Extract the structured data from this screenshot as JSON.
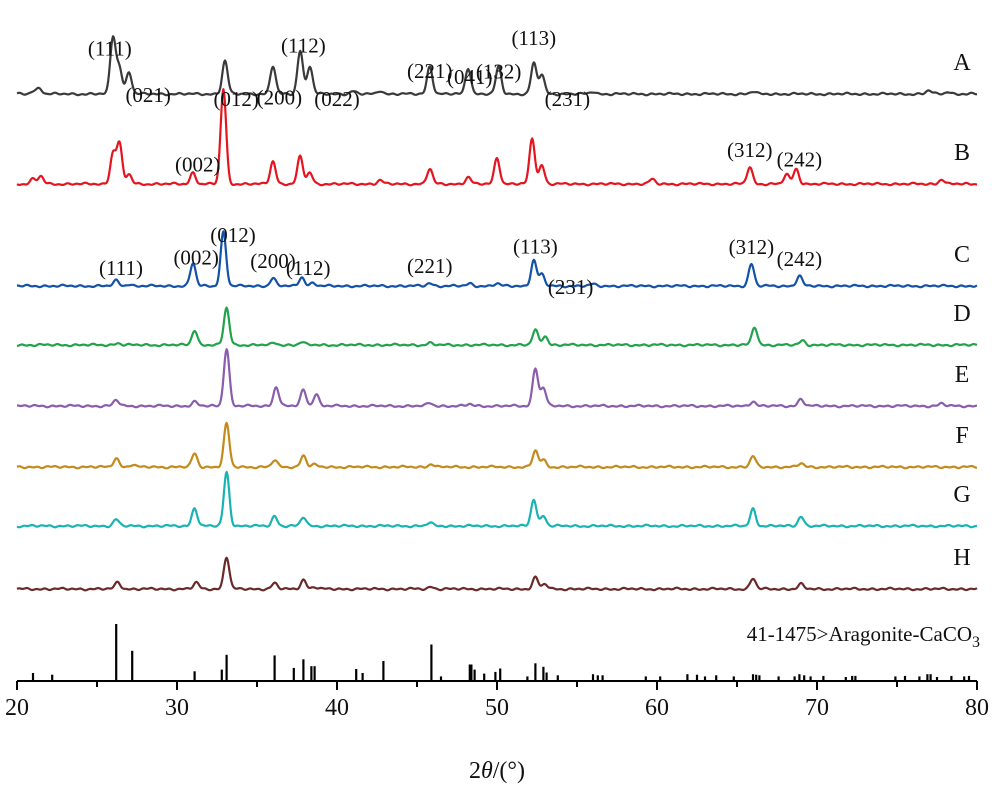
{
  "chart_data": {
    "type": "line",
    "x_range": [
      20,
      80
    ],
    "x_ticks": [
      "20",
      "30",
      "40",
      "50",
      "60",
      "70",
      "80"
    ],
    "xlabel": {
      "pre": "2",
      "theta": "θ",
      "post": "/(°)"
    },
    "grid": false,
    "series": [
      {
        "name": "A",
        "color": "#3a3a3a",
        "scale": 58,
        "peaks": [
          [
            21.0,
            0.05
          ],
          [
            21.4,
            0.1
          ],
          [
            26.0,
            0.98
          ],
          [
            26.4,
            0.45
          ],
          [
            27.0,
            0.38
          ],
          [
            33.0,
            0.57
          ],
          [
            36.0,
            0.48
          ],
          [
            37.7,
            0.75
          ],
          [
            38.3,
            0.48
          ],
          [
            41.0,
            0.05
          ],
          [
            42.7,
            0.06
          ],
          [
            45.8,
            0.48
          ],
          [
            48.2,
            0.45
          ],
          [
            50.1,
            0.47
          ],
          [
            52.3,
            0.53
          ],
          [
            52.8,
            0.33
          ],
          [
            56.0,
            0.04
          ],
          [
            66.0,
            0.04
          ],
          [
            77.0,
            0.06
          ],
          [
            78.2,
            0.04
          ]
        ]
      },
      {
        "name": "B",
        "color": "#e5141e",
        "scale": 95,
        "peaks": [
          [
            21.0,
            0.05
          ],
          [
            21.5,
            0.08
          ],
          [
            26.0,
            0.32
          ],
          [
            26.4,
            0.42
          ],
          [
            27.0,
            0.1
          ],
          [
            31.0,
            0.12
          ],
          [
            32.9,
            1.0
          ],
          [
            36.0,
            0.24
          ],
          [
            37.7,
            0.29
          ],
          [
            38.3,
            0.12
          ],
          [
            42.7,
            0.04
          ],
          [
            45.8,
            0.16
          ],
          [
            48.2,
            0.07
          ],
          [
            50.0,
            0.28
          ],
          [
            52.2,
            0.48
          ],
          [
            52.8,
            0.2
          ],
          [
            59.7,
            0.05
          ],
          [
            65.8,
            0.18
          ],
          [
            68.1,
            0.1
          ],
          [
            68.7,
            0.16
          ],
          [
            77.8,
            0.05
          ]
        ]
      },
      {
        "name": "C",
        "color": "#1452a8",
        "scale": 60,
        "peaks": [
          [
            26.2,
            0.09
          ],
          [
            27.0,
            0.03
          ],
          [
            31.0,
            0.38
          ],
          [
            32.9,
            0.9
          ],
          [
            36.0,
            0.13
          ],
          [
            37.8,
            0.15
          ],
          [
            38.5,
            0.05
          ],
          [
            45.8,
            0.05
          ],
          [
            48.3,
            0.04
          ],
          [
            50.0,
            0.04
          ],
          [
            52.3,
            0.43
          ],
          [
            52.8,
            0.19
          ],
          [
            56.0,
            0.03
          ],
          [
            65.9,
            0.37
          ],
          [
            68.9,
            0.17
          ]
        ]
      },
      {
        "name": "D",
        "color": "#22a24a",
        "scale": 50,
        "peaks": [
          [
            26.3,
            0.04
          ],
          [
            31.1,
            0.3
          ],
          [
            33.1,
            0.74
          ],
          [
            36.1,
            0.04
          ],
          [
            37.8,
            0.06
          ],
          [
            45.8,
            0.04
          ],
          [
            52.4,
            0.3
          ],
          [
            53.0,
            0.18
          ],
          [
            66.1,
            0.36
          ],
          [
            69.1,
            0.09
          ]
        ]
      },
      {
        "name": "E",
        "color": "#8a5cae",
        "scale": 60,
        "peaks": [
          [
            26.2,
            0.1
          ],
          [
            31.1,
            0.07
          ],
          [
            33.1,
            0.96
          ],
          [
            36.2,
            0.32
          ],
          [
            37.9,
            0.27
          ],
          [
            38.7,
            0.2
          ],
          [
            45.8,
            0.05
          ],
          [
            48.3,
            0.03
          ],
          [
            52.4,
            0.63
          ],
          [
            52.9,
            0.3
          ],
          [
            66.0,
            0.08
          ],
          [
            69.0,
            0.12
          ],
          [
            77.8,
            0.04
          ]
        ]
      },
      {
        "name": "F",
        "color": "#c48a1c",
        "scale": 45,
        "peaks": [
          [
            26.2,
            0.2
          ],
          [
            27.2,
            0.05
          ],
          [
            31.1,
            0.3
          ],
          [
            33.1,
            0.96
          ],
          [
            36.1,
            0.15
          ],
          [
            37.9,
            0.26
          ],
          [
            38.6,
            0.05
          ],
          [
            45.9,
            0.07
          ],
          [
            52.4,
            0.36
          ],
          [
            52.9,
            0.15
          ],
          [
            66.0,
            0.24
          ],
          [
            69.0,
            0.08
          ]
        ]
      },
      {
        "name": "G",
        "color": "#1ab3b3",
        "scale": 55,
        "peaks": [
          [
            26.2,
            0.12
          ],
          [
            31.1,
            0.33
          ],
          [
            33.1,
            0.98
          ],
          [
            36.1,
            0.18
          ],
          [
            37.9,
            0.16
          ],
          [
            45.8,
            0.06
          ],
          [
            52.3,
            0.49
          ],
          [
            52.9,
            0.19
          ],
          [
            66.0,
            0.31
          ],
          [
            69.0,
            0.18
          ]
        ]
      },
      {
        "name": "H",
        "color": "#6b2a2a",
        "scale": 32,
        "peaks": [
          [
            26.3,
            0.22
          ],
          [
            31.2,
            0.2
          ],
          [
            33.1,
            1.0
          ],
          [
            36.1,
            0.18
          ],
          [
            37.9,
            0.29
          ],
          [
            38.6,
            0.06
          ],
          [
            45.9,
            0.07
          ],
          [
            52.4,
            0.36
          ],
          [
            53.0,
            0.15
          ],
          [
            66.0,
            0.33
          ],
          [
            69.0,
            0.15
          ]
        ]
      }
    ],
    "reference": {
      "label_pre": "41-1475>Aragonite-CaCO",
      "label_sub": "3",
      "lines": [
        [
          21.0,
          14
        ],
        [
          22.2,
          11
        ],
        [
          26.2,
          100
        ],
        [
          27.2,
          53
        ],
        [
          31.1,
          17
        ],
        [
          32.8,
          20
        ],
        [
          33.1,
          46
        ],
        [
          36.1,
          45
        ],
        [
          37.3,
          23
        ],
        [
          37.9,
          38
        ],
        [
          38.4,
          26
        ],
        [
          38.6,
          26
        ],
        [
          41.2,
          21
        ],
        [
          41.6,
          14
        ],
        [
          42.9,
          35
        ],
        [
          45.9,
          64
        ],
        [
          46.5,
          8
        ],
        [
          48.3,
          29
        ],
        [
          48.4,
          29
        ],
        [
          48.6,
          20
        ],
        [
          49.2,
          13
        ],
        [
          49.9,
          16
        ],
        [
          50.2,
          22
        ],
        [
          51.9,
          8
        ],
        [
          52.4,
          31
        ],
        [
          52.9,
          25
        ],
        [
          53.1,
          15
        ],
        [
          53.8,
          10
        ],
        [
          56.0,
          12
        ],
        [
          56.3,
          10
        ],
        [
          56.6,
          10
        ],
        [
          59.3,
          8
        ],
        [
          60.2,
          8
        ],
        [
          61.9,
          12
        ],
        [
          62.5,
          11
        ],
        [
          63.0,
          8
        ],
        [
          63.7,
          10
        ],
        [
          64.8,
          8
        ],
        [
          66.0,
          12
        ],
        [
          66.2,
          11
        ],
        [
          66.4,
          10
        ],
        [
          67.6,
          8
        ],
        [
          68.6,
          8
        ],
        [
          68.9,
          12
        ],
        [
          69.2,
          10
        ],
        [
          69.6,
          8
        ],
        [
          70.4,
          9
        ],
        [
          71.8,
          7
        ],
        [
          72.2,
          9
        ],
        [
          72.4,
          9
        ],
        [
          74.9,
          8
        ],
        [
          75.5,
          9
        ],
        [
          76.4,
          8
        ],
        [
          76.9,
          12
        ],
        [
          77.1,
          12
        ],
        [
          77.5,
          7
        ],
        [
          78.4,
          9
        ],
        [
          79.2,
          8
        ],
        [
          79.5,
          9
        ]
      ]
    },
    "annotations": [
      {
        "text": "(111)",
        "x": 25.8,
        "series": "A",
        "dx": 0,
        "dy": 0
      },
      {
        "text": "(021)",
        "x": 28.2,
        "series": "A",
        "dx": 0,
        "dy": 18
      },
      {
        "text": "(012)",
        "x": 33.7,
        "series": "A",
        "dx": 0,
        "dy": 22
      },
      {
        "text": "(200)",
        "x": 36.4,
        "series": "A",
        "dx": 0,
        "dy": 22
      },
      {
        "text": "(112)",
        "x": 37.9,
        "series": "A",
        "dx": 0,
        "dy": -8
      },
      {
        "text": "(022)",
        "x": 40.0,
        "series": "A",
        "dx": 0,
        "dy": 22
      },
      {
        "text": "(221)",
        "x": 45.8,
        "series": "A",
        "dx": 0,
        "dy": 22
      },
      {
        "text": "(041)",
        "x": 48.3,
        "series": "A",
        "dx": 0,
        "dy": 22
      },
      {
        "text": "(132)",
        "x": 50.1,
        "series": "A",
        "dx": 0,
        "dy": 22
      },
      {
        "text": "(113)",
        "x": 52.3,
        "series": "A",
        "dx": 0,
        "dy": -8
      },
      {
        "text": "(231)",
        "x": 54.4,
        "series": "A",
        "dx": 0,
        "dy": 22
      },
      {
        "text": "(002)",
        "x": 31.3,
        "series": "B",
        "dx": 0,
        "dy": 0
      },
      {
        "text": "(312)",
        "x": 65.8,
        "series": "B",
        "dx": 0,
        "dy": 0
      },
      {
        "text": "(242)",
        "x": 68.9,
        "series": "B",
        "dx": 0,
        "dy": 0
      },
      {
        "text": "(111)",
        "x": 26.5,
        "series": "C",
        "dx": 0,
        "dy": 0
      },
      {
        "text": "(002)",
        "x": 31.2,
        "series": "C",
        "dx": 0,
        "dy": 0
      },
      {
        "text": "(012)",
        "x": 33.5,
        "series": "C",
        "dx": 0,
        "dy": -34
      },
      {
        "text": "(200)",
        "x": 36.0,
        "series": "C",
        "dx": 0,
        "dy": 0
      },
      {
        "text": "(112)",
        "x": 38.2,
        "series": "C",
        "dx": 0,
        "dy": 0
      },
      {
        "text": "(221)",
        "x": 45.8,
        "series": "C",
        "dx": 0,
        "dy": 0
      },
      {
        "text": "(113)",
        "x": 52.4,
        "series": "C",
        "dx": 0,
        "dy": 0
      },
      {
        "text": "(231)",
        "x": 54.6,
        "series": "C",
        "dx": 0,
        "dy": 18
      },
      {
        "text": "(312)",
        "x": 65.9,
        "series": "C",
        "dx": 0,
        "dy": 0
      },
      {
        "text": "(242)",
        "x": 68.9,
        "series": "C",
        "dx": 0,
        "dy": 0
      }
    ]
  }
}
